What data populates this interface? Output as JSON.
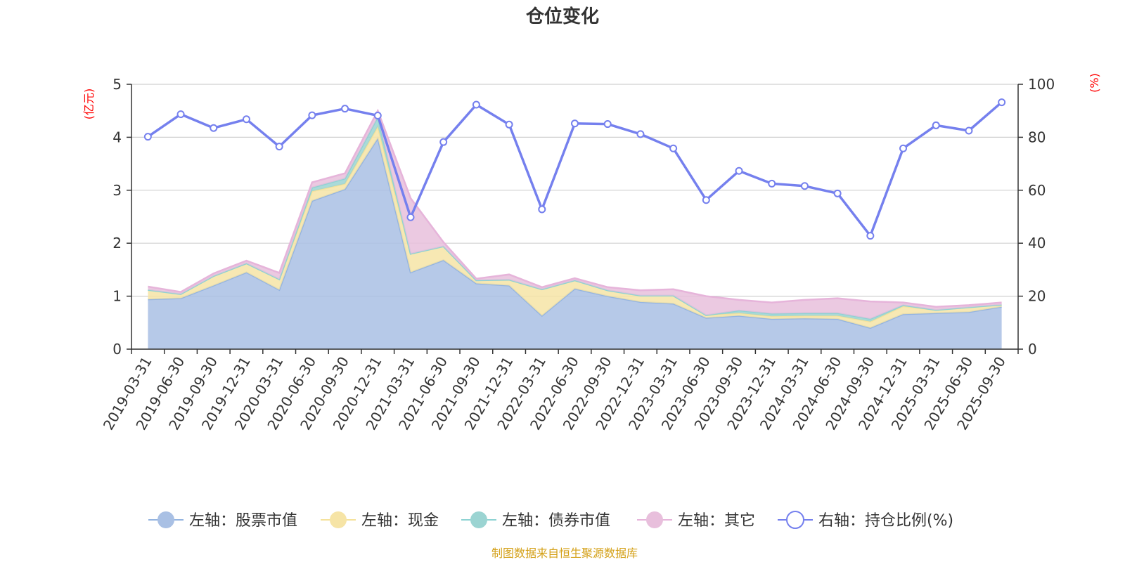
{
  "chart_data": {
    "type": "area",
    "title": "仓位变化",
    "left_axis_unit": "(亿元)",
    "right_axis_unit": "(%)",
    "left_ylim": [
      0,
      5
    ],
    "left_ticks": [
      0,
      1,
      2,
      3,
      4,
      5
    ],
    "right_ylim": [
      0,
      100
    ],
    "right_ticks": [
      0,
      20,
      40,
      60,
      80,
      100
    ],
    "categories": [
      "2019-03-31",
      "2019-06-30",
      "2019-09-30",
      "2019-12-31",
      "2020-03-31",
      "2020-06-30",
      "2020-09-30",
      "2020-12-31",
      "2021-03-31",
      "2021-06-30",
      "2021-09-30",
      "2021-12-31",
      "2022-03-31",
      "2022-06-30",
      "2022-09-30",
      "2022-12-31",
      "2023-03-31",
      "2023-06-30",
      "2023-09-30",
      "2023-12-31",
      "2024-03-31",
      "2024-06-30",
      "2024-09-30",
      "2024-12-31",
      "2025-03-31",
      "2025-06-30",
      "2025-09-30"
    ],
    "stacked_series": [
      {
        "name": "左轴：股票市值",
        "color": "#a9c0e4",
        "line_color": "#94b4e0",
        "values": [
          0.94,
          0.96,
          1.2,
          1.45,
          1.12,
          2.8,
          3.02,
          3.98,
          1.45,
          1.68,
          1.24,
          1.2,
          0.63,
          1.14,
          1.0,
          0.89,
          0.86,
          0.59,
          0.63,
          0.57,
          0.58,
          0.57,
          0.4,
          0.66,
          0.68,
          0.7,
          0.8
        ]
      },
      {
        "name": "左轴：现金",
        "color": "#f6e4a6",
        "line_color": "#f5e29c",
        "values": [
          0.18,
          0.08,
          0.18,
          0.17,
          0.2,
          0.18,
          0.1,
          0.22,
          0.35,
          0.26,
          0.06,
          0.11,
          0.5,
          0.16,
          0.11,
          0.12,
          0.15,
          0.05,
          0.05,
          0.05,
          0.05,
          0.06,
          0.12,
          0.15,
          0.06,
          0.09,
          0.04
        ]
      },
      {
        "name": "左轴：债券市值",
        "color": "#9bd4d2",
        "line_color": "#8ed3d3",
        "values": [
          0,
          0,
          0,
          0,
          0,
          0.07,
          0.1,
          0.18,
          0,
          0,
          0,
          0,
          0,
          0,
          0,
          0,
          0,
          0,
          0.05,
          0.05,
          0.05,
          0.05,
          0.05,
          0.02,
          0,
          0,
          0
        ]
      },
      {
        "name": "左轴：其它",
        "color": "#e8bfdc",
        "line_color": "#e6b4da",
        "values": [
          0.06,
          0.04,
          0.05,
          0.05,
          0.12,
          0.1,
          0.1,
          0.12,
          1.05,
          0.08,
          0.03,
          0.1,
          0.04,
          0.04,
          0.06,
          0.1,
          0.12,
          0.36,
          0.2,
          0.21,
          0.25,
          0.28,
          0.33,
          0.05,
          0.06,
          0.04,
          0.04
        ]
      }
    ],
    "line_series": {
      "name": "右轴：持仓比例(%)",
      "color": "#7580ee",
      "values": [
        80.2,
        88.7,
        83.5,
        86.8,
        76.5,
        88.3,
        90.8,
        88.2,
        49.8,
        78.2,
        92.3,
        84.8,
        52.8,
        85.2,
        85.0,
        81.2,
        75.8,
        56.3,
        67.3,
        62.5,
        61.6,
        58.8,
        42.8,
        75.8,
        84.5,
        82.5,
        93.2
      ]
    },
    "legend_position": "bottom",
    "grid": true
  },
  "source_note": "制图数据来自恒生聚源数据库"
}
